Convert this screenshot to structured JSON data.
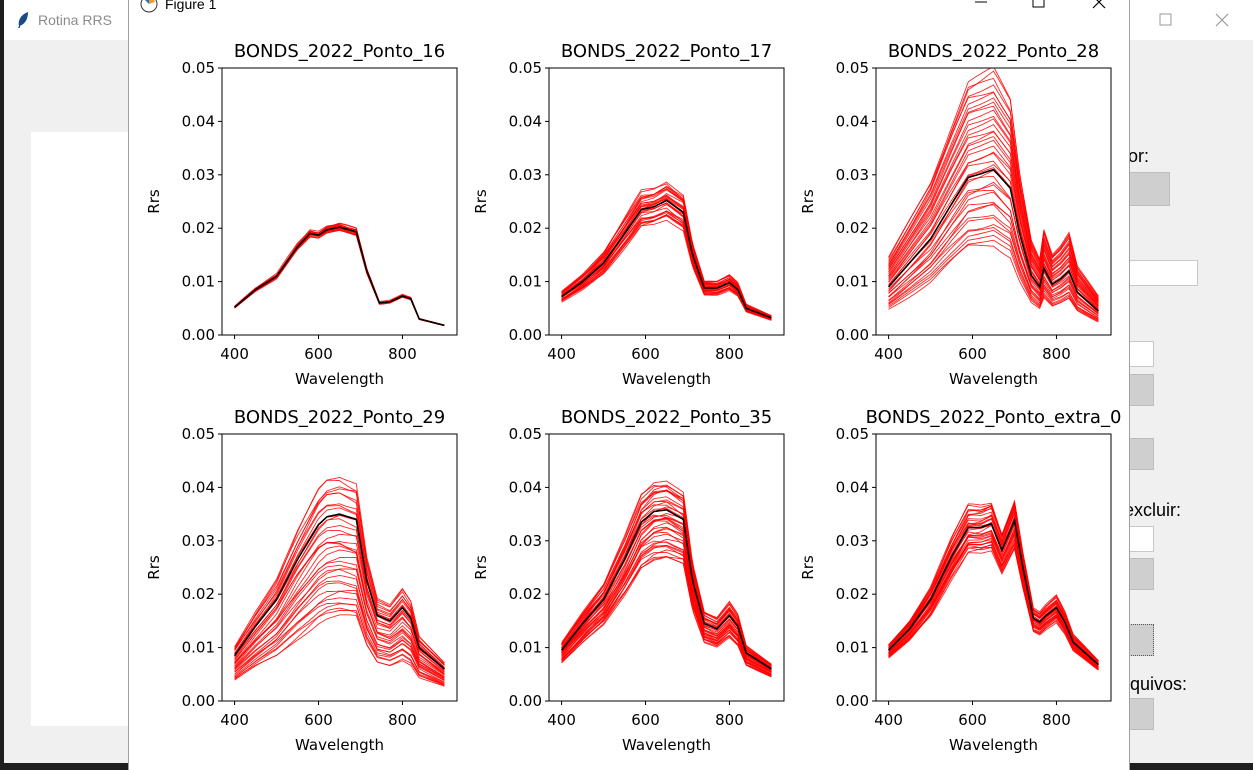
{
  "background_window": {
    "title": "Rotina RRS",
    "labels": [
      "ior:",
      "excluir:",
      "rquivos:"
    ]
  },
  "figure_window": {
    "title": "Figure 1"
  },
  "colors": {
    "spectra": "#ff0000",
    "mean": "#000000",
    "background": "#ffffff"
  },
  "chart_data": [
    {
      "type": "line",
      "title": "BONDS_2022_Ponto_16",
      "xlabel": "Wavelength",
      "ylabel": "Rrs",
      "xlim": [
        370,
        930
      ],
      "ylim": [
        0,
        0.05
      ],
      "xticks": [
        "400",
        "600",
        "800"
      ],
      "yticks": [
        "0.00",
        "0.01",
        "0.02",
        "0.03",
        "0.04",
        "0.05"
      ],
      "mean": {
        "x": [
          400,
          450,
          500,
          550,
          580,
          600,
          620,
          650,
          690,
          715,
          745,
          770,
          800,
          820,
          840,
          900
        ],
        "y": [
          0.0052,
          0.0085,
          0.011,
          0.0165,
          0.019,
          0.0187,
          0.0197,
          0.0202,
          0.0193,
          0.012,
          0.006,
          0.0062,
          0.0073,
          0.0068,
          0.003,
          0.0018
        ]
      },
      "band": {
        "curves": 18,
        "low": 0.97,
        "high": 1.03
      }
    },
    {
      "type": "line",
      "title": "BONDS_2022_Ponto_17",
      "xlabel": "Wavelength",
      "ylabel": "Rrs",
      "xlim": [
        370,
        930
      ],
      "ylim": [
        0,
        0.05
      ],
      "xticks": [
        "400",
        "600",
        "800"
      ],
      "yticks": [
        "0.00",
        "0.01",
        "0.02",
        "0.03",
        "0.04",
        "0.05"
      ],
      "mean": {
        "x": [
          400,
          450,
          500,
          550,
          590,
          620,
          650,
          690,
          712,
          740,
          770,
          800,
          820,
          840,
          900
        ],
        "y": [
          0.0072,
          0.01,
          0.0135,
          0.019,
          0.0235,
          0.024,
          0.0252,
          0.023,
          0.015,
          0.0088,
          0.0088,
          0.0098,
          0.0085,
          0.005,
          0.0032
        ]
      },
      "band": {
        "curves": 30,
        "low": 0.86,
        "high": 1.14
      }
    },
    {
      "type": "line",
      "title": "BONDS_2022_Ponto_28",
      "xlabel": "Wavelength",
      "ylabel": "Rrs",
      "xlim": [
        370,
        930
      ],
      "ylim": [
        0,
        0.05
      ],
      "xticks": [
        "400",
        "600",
        "800"
      ],
      "yticks": [
        "0.00",
        "0.01",
        "0.02",
        "0.03",
        "0.04",
        "0.05"
      ],
      "mean": {
        "x": [
          400,
          450,
          500,
          550,
          590,
          620,
          650,
          690,
          712,
          740,
          760,
          770,
          790,
          810,
          830,
          850,
          900
        ],
        "y": [
          0.009,
          0.0135,
          0.018,
          0.0245,
          0.0295,
          0.0302,
          0.031,
          0.0275,
          0.019,
          0.0112,
          0.009,
          0.0125,
          0.0095,
          0.0105,
          0.012,
          0.008,
          0.0045
        ]
      },
      "band": {
        "curves": 40,
        "low": 0.55,
        "high": 1.6
      }
    },
    {
      "type": "line",
      "title": "BONDS_2022_Ponto_29",
      "xlabel": "Wavelength",
      "ylabel": "Rrs",
      "xlim": [
        370,
        930
      ],
      "ylim": [
        0,
        0.05
      ],
      "xticks": [
        "400",
        "600",
        "800"
      ],
      "yticks": [
        "0.00",
        "0.01",
        "0.02",
        "0.03",
        "0.04",
        "0.05"
      ],
      "mean": {
        "x": [
          400,
          450,
          500,
          550,
          600,
          620,
          650,
          690,
          715,
          740,
          770,
          800,
          820,
          840,
          900
        ],
        "y": [
          0.0085,
          0.014,
          0.019,
          0.0265,
          0.033,
          0.0345,
          0.035,
          0.034,
          0.0225,
          0.016,
          0.015,
          0.0175,
          0.0155,
          0.01,
          0.006
        ]
      },
      "band": {
        "curves": 36,
        "low": 0.45,
        "high": 1.2
      }
    },
    {
      "type": "line",
      "title": "BONDS_2022_Ponto_35",
      "xlabel": "Wavelength",
      "ylabel": "Rrs",
      "xlim": [
        370,
        930
      ],
      "ylim": [
        0,
        0.05
      ],
      "xticks": [
        "400",
        "600",
        "800"
      ],
      "yticks": [
        "0.00",
        "0.01",
        "0.02",
        "0.03",
        "0.04",
        "0.05"
      ],
      "mean": {
        "x": [
          400,
          450,
          500,
          550,
          590,
          620,
          650,
          690,
          712,
          740,
          770,
          800,
          820,
          840,
          900
        ],
        "y": [
          0.0095,
          0.0145,
          0.019,
          0.0265,
          0.0335,
          0.0355,
          0.0358,
          0.034,
          0.0225,
          0.0145,
          0.0135,
          0.016,
          0.014,
          0.009,
          0.006
        ]
      },
      "band": {
        "curves": 40,
        "low": 0.75,
        "high": 1.15
      }
    },
    {
      "type": "line",
      "title": "BONDS_2022_Ponto_extra_0",
      "xlabel": "Wavelength",
      "ylabel": "Rrs",
      "xlim": [
        370,
        930
      ],
      "ylim": [
        0,
        0.05
      ],
      "xticks": [
        "400",
        "600",
        "800"
      ],
      "yticks": [
        "0.00",
        "0.01",
        "0.02",
        "0.03",
        "0.04",
        "0.05"
      ],
      "mean": {
        "x": [
          400,
          450,
          500,
          550,
          590,
          620,
          645,
          670,
          700,
          720,
          745,
          760,
          775,
          800,
          820,
          840,
          900
        ],
        "y": [
          0.0095,
          0.0135,
          0.019,
          0.027,
          0.0325,
          0.0325,
          0.0332,
          0.0282,
          0.0338,
          0.025,
          0.0155,
          0.0148,
          0.016,
          0.0175,
          0.0148,
          0.011,
          0.0068
        ]
      },
      "band": {
        "curves": 36,
        "low": 0.85,
        "high": 1.12
      }
    }
  ]
}
